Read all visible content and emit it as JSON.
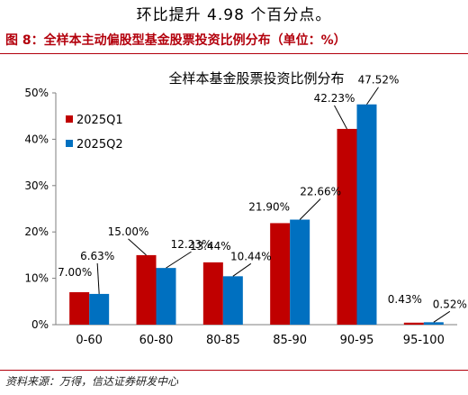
{
  "intro_text": "环比提升 4.98 个百分点。",
  "figure_title": "图 8：全样本主动偏股型基金股票投资比例分布（单位：%）",
  "source_note": "资料来源：万得，信达证券研发中心",
  "colors": {
    "accent": "#b3000c",
    "series1": "#c00000",
    "series2": "#0070c0"
  },
  "chart_data": {
    "type": "bar",
    "title": "全样本基金股票投资比例分布",
    "xlabel": "",
    "ylabel": "",
    "categories": [
      "0-60",
      "60-80",
      "80-85",
      "85-90",
      "90-95",
      "95-100"
    ],
    "ylim": [
      0,
      50
    ],
    "yticks": [
      "0%",
      "10%",
      "20%",
      "30%",
      "40%",
      "50%"
    ],
    "legend_position": "top-left",
    "series": [
      {
        "name": "2025Q1",
        "values": [
          7.0,
          15.0,
          13.44,
          21.9,
          42.23,
          0.43
        ],
        "labels": [
          "7.00%",
          "15.00%",
          "13.44%",
          "21.90%",
          "42.23%",
          "0.43%"
        ]
      },
      {
        "name": "2025Q2",
        "values": [
          6.63,
          12.23,
          10.44,
          22.66,
          47.52,
          0.52
        ],
        "labels": [
          "6.63%",
          "12.23%",
          "10.44%",
          "22.66%",
          "47.52%",
          "0.52%"
        ]
      }
    ]
  }
}
